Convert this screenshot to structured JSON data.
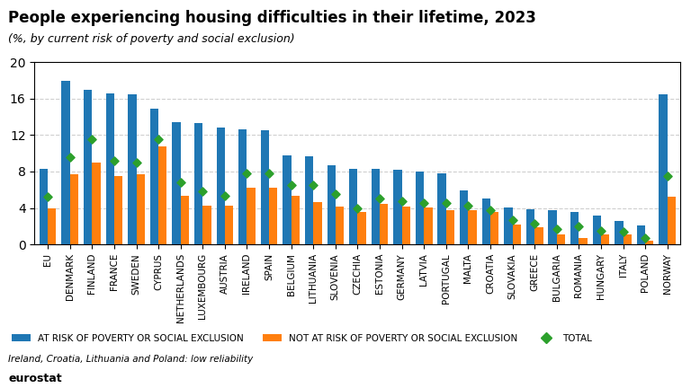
{
  "chart_data": {
    "type": "bar",
    "title": "People experiencing housing difficulties in their lifetime, 2023",
    "subtitle": "(%, by current risk of poverty and social exclusion)",
    "footnote": "Ireland, Croatia, Lithuania and Poland: low reliability",
    "source": "eurostat",
    "categories": [
      "EU",
      "DENMARK",
      "FINLAND",
      "FRANCE",
      "SWEDEN",
      "CYPRUS",
      "NETHERLANDS",
      "LUXEMBOURG",
      "AUSTRIA",
      "IRELAND",
      "SPAIN",
      "BELGIUM",
      "LITHUANIA",
      "SLOVENIA",
      "CZECHIA",
      "ESTONIA",
      "GERMANY",
      "LATVIA",
      "PORTUGAL",
      "MALTA",
      "CROATIA",
      "SLOVAKIA",
      "GREECE",
      "BULGARIA",
      "ROMANIA",
      "HUNGARY",
      "ITALY",
      "POLAND",
      "NORWAY"
    ],
    "series": [
      {
        "name": "AT RISK OF POVERTY OR SOCIAL EXCLUSION",
        "type": "bar",
        "values": [
          8.3,
          17.9,
          17.0,
          16.6,
          16.5,
          14.9,
          13.4,
          13.3,
          12.8,
          12.6,
          12.5,
          9.8,
          9.7,
          8.7,
          8.3,
          8.3,
          8.2,
          8.0,
          7.8,
          5.9,
          5.0,
          4.1,
          3.9,
          3.8,
          3.6,
          3.2,
          2.6,
          2.1,
          16.5
        ]
      },
      {
        "name": "NOT AT RISK OF POVERTY OR SOCIAL EXCLUSION",
        "type": "bar",
        "values": [
          4.0,
          7.7,
          9.0,
          7.5,
          7.7,
          10.8,
          5.3,
          4.3,
          4.3,
          6.2,
          6.2,
          5.3,
          4.6,
          4.2,
          3.6,
          4.4,
          4.2,
          4.1,
          3.8,
          3.8,
          3.6,
          2.2,
          1.9,
          1.1,
          0.7,
          1.1,
          1.1,
          0.4,
          5.2
        ]
      },
      {
        "name": "TOTAL",
        "type": "scatter",
        "marker": "diamond",
        "values": [
          5.2,
          9.6,
          11.5,
          9.2,
          9.0,
          11.5,
          6.8,
          5.8,
          5.3,
          7.8,
          7.8,
          6.5,
          6.5,
          5.5,
          4.0,
          5.0,
          4.7,
          4.5,
          4.5,
          4.3,
          3.8,
          2.7,
          2.3,
          1.7,
          2.0,
          1.5,
          1.4,
          0.7,
          7.5
        ]
      }
    ],
    "ylim": [
      0,
      20
    ],
    "yticks": [
      0,
      4,
      8,
      12,
      16,
      20
    ],
    "grid": true,
    "legend": "lower left"
  }
}
